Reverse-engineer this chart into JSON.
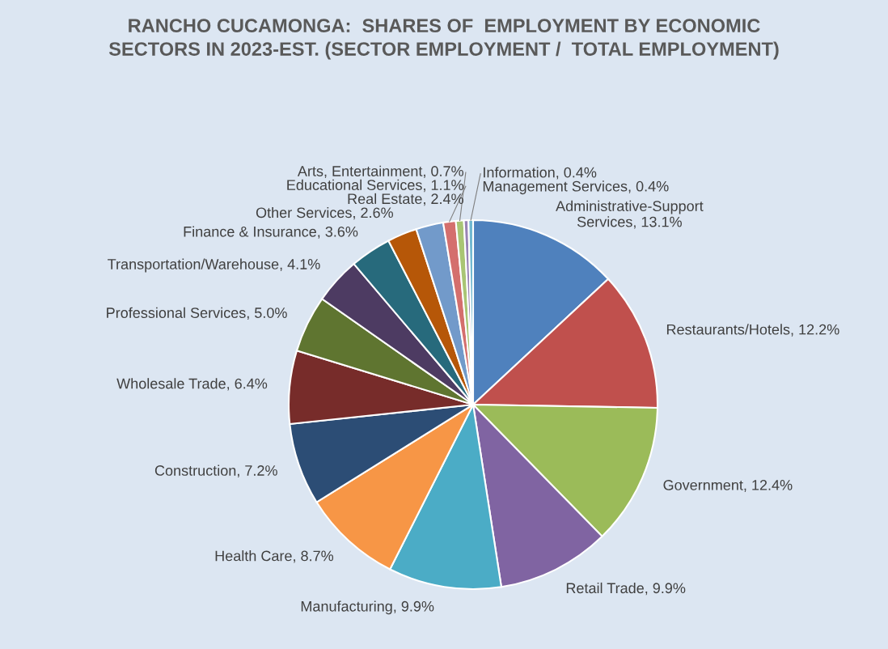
{
  "chart_data": {
    "type": "pie",
    "title": "RANCHO CUCAMONGA:  SHARES OF  EMPLOYMENT BY ECONOMIC\nSECTORS IN 2023-EST. (SECTOR EMPLOYMENT /  TOTAL EMPLOYMENT)",
    "categories": [
      "Administrative-Support\nServices",
      "Restaurants/Hotels",
      "Government",
      "Retail Trade",
      "Manufacturing",
      "Health Care",
      "Construction",
      "Wholesale Trade",
      "Professional Services",
      "Transportation/Warehouse",
      "Finance & Insurance",
      "Other Services",
      "Real Estate",
      "Educational Services",
      "Arts, Entertainment",
      "Management Services",
      "Information"
    ],
    "values": [
      13.1,
      12.2,
      12.4,
      9.9,
      9.9,
      8.7,
      7.2,
      6.4,
      5.0,
      4.1,
      3.6,
      2.6,
      2.4,
      1.1,
      0.7,
      0.4,
      0.4
    ],
    "value_labels": [
      "13.1%",
      "12.2%",
      "12.4%",
      "9.9%",
      "9.9%",
      "8.7%",
      "7.2%",
      "6.4%",
      "5.0%",
      "4.1%",
      "3.6%",
      "2.6%",
      "2.4%",
      "1.1%",
      "0.7%",
      "0.4%",
      "0.4%"
    ],
    "colors": [
      "#4f81bd",
      "#c0504d",
      "#9bbb59",
      "#8064a2",
      "#4bacc6",
      "#f79646",
      "#2c4d75",
      "#772c2a",
      "#5f7530",
      "#4d3b62",
      "#276a7c",
      "#b65708",
      "#729aca",
      "#d46f6d",
      "#a9c574",
      "#9983b5",
      "#6fb7d0"
    ],
    "legend": false
  }
}
